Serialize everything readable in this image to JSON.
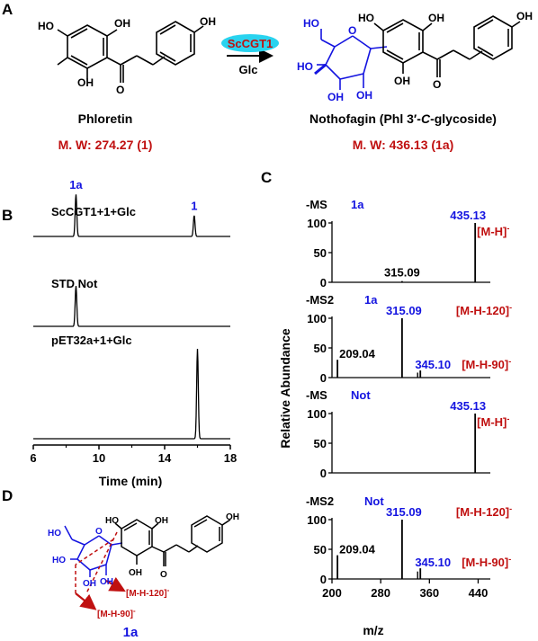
{
  "colors": {
    "black": "#000000",
    "blue": "#1414e0",
    "red": "#c01010",
    "cyan": "#29d3ef",
    "darkred": "#8b0000"
  },
  "panels": {
    "a": "A",
    "b": "B",
    "c": "C",
    "d": "D"
  },
  "panel_a": {
    "enzyme": "ScCGT1",
    "sugar": "Glc",
    "phloretin_name": "Phloretin",
    "phloretin_mw": "M. W: 274.27 (1)",
    "notho_name_pre": "Nothofagin (Phl 3′-",
    "notho_name_c": "C",
    "notho_name_post": "-glycoside)",
    "notho_mw": "M. W: 436.13 (1a)",
    "atoms": {
      "ho": "HO",
      "oh": "OH",
      "o": "O"
    }
  },
  "panel_b": {
    "traces": [
      {
        "label": "ScCGT1+1+Glc",
        "peaks": [
          {
            "rt": 8.6,
            "height": 0.9,
            "label": "1a"
          },
          {
            "rt": 15.8,
            "height": 0.45,
            "label": "1"
          }
        ]
      },
      {
        "label": "STD Not",
        "peaks": [
          {
            "rt": 8.6,
            "height": 0.9
          }
        ]
      },
      {
        "label": "pET32a+1+Glc",
        "peaks": [
          {
            "rt": 16.0,
            "height": 1.0
          }
        ]
      }
    ],
    "x_ticks": [
      "6",
      "10",
      "14",
      "18"
    ],
    "x_range": [
      6,
      18
    ],
    "xlabel": "Time (min)"
  },
  "panel_c": {
    "ylabel": "Relative Abundance",
    "xlabel": "m/z",
    "x_ticks": [
      "200",
      "280",
      "360",
      "440"
    ],
    "x_range": [
      200,
      460
    ],
    "y_ticks": [
      "0",
      "50",
      "100"
    ],
    "spectra": [
      {
        "title": "-MS",
        "sample": "1a",
        "peaks": [
          {
            "mz": 435.13,
            "rel": 100,
            "text": "435.13",
            "ion": "[M-H]",
            "sup": "-"
          },
          {
            "mz": 315.09,
            "rel": 2,
            "text": "315.09"
          }
        ]
      },
      {
        "title": "-MS2",
        "sample": "1a",
        "peaks": [
          {
            "mz": 315.09,
            "rel": 100,
            "text": "315.09",
            "ion": "[M-H-120]",
            "sup": "-"
          },
          {
            "mz": 209.04,
            "rel": 30,
            "text": "209.04"
          },
          {
            "mz": 345.1,
            "rel": 12,
            "text": "345.10",
            "ion": "[M-H-90]",
            "sup": "-"
          }
        ]
      },
      {
        "title": "-MS",
        "sample": "Not",
        "peaks": [
          {
            "mz": 435.13,
            "rel": 100,
            "text": "435.13",
            "ion": "[M-H]",
            "sup": "-"
          }
        ]
      },
      {
        "title": "-MS2",
        "sample": "Not",
        "peaks": [
          {
            "mz": 315.09,
            "rel": 100,
            "text": "315.09",
            "ion": "[M-H-120]",
            "sup": "-"
          },
          {
            "mz": 209.04,
            "rel": 40,
            "text": "209.04"
          },
          {
            "mz": 345.1,
            "rel": 18,
            "text": "345.10",
            "ion": "[M-H-90]",
            "sup": "-"
          }
        ]
      }
    ]
  },
  "panel_d": {
    "frag120": "[M-H-120]",
    "frag90": "[M-H-90]",
    "sup": "-",
    "label": "1a"
  },
  "chart_data": [
    {
      "type": "line",
      "xlabel": "Time (min)",
      "xlim": [
        6,
        18
      ],
      "series": [
        {
          "name": "ScCGT1+1+Glc",
          "peaks_rt": [
            8.6,
            15.8
          ],
          "peak_labels": [
            "1a",
            "1"
          ]
        },
        {
          "name": "STD Not",
          "peaks_rt": [
            8.6
          ]
        },
        {
          "name": "pET32a+1+Glc",
          "peaks_rt": [
            16.0
          ]
        }
      ]
    },
    {
      "type": "bar",
      "xlabel": "m/z",
      "ylabel": "Relative Abundance",
      "xlim": [
        200,
        460
      ],
      "ylim": [
        0,
        100
      ],
      "series": [
        {
          "name": "-MS 1a",
          "x": [
            315.09,
            435.13
          ],
          "values": [
            2,
            100
          ]
        },
        {
          "name": "-MS2 1a",
          "x": [
            209.04,
            315.09,
            345.1
          ],
          "values": [
            30,
            100,
            12
          ]
        },
        {
          "name": "-MS Not",
          "x": [
            435.13
          ],
          "values": [
            100
          ]
        },
        {
          "name": "-MS2 Not",
          "x": [
            209.04,
            315.09,
            345.1
          ],
          "values": [
            40,
            100,
            18
          ]
        }
      ]
    }
  ]
}
